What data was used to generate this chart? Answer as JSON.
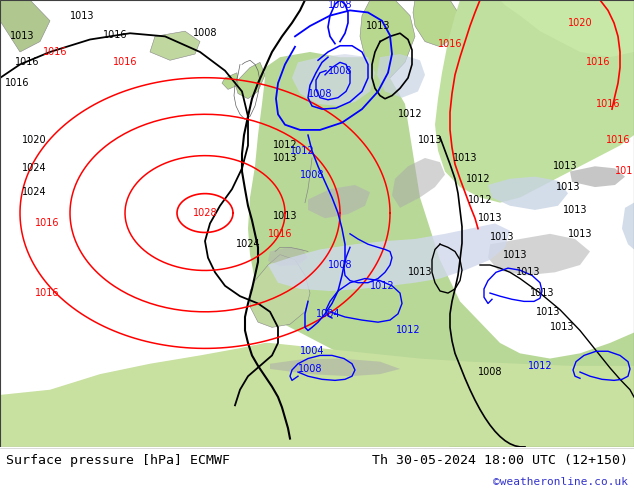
{
  "title_left": "Surface pressure [hPa] ECMWF",
  "title_right": "Th 30-05-2024 18:00 UTC (12+150)",
  "watermark": "©weatheronline.co.uk",
  "footer_bg": "#ffffff",
  "footer_text_color": "#000000",
  "watermark_color": "#3333cc",
  "title_fontsize": 9.5,
  "watermark_fontsize": 8,
  "figsize": [
    6.34,
    4.9
  ],
  "dpi": 100,
  "land_green": "#b8d898",
  "land_green2": "#c8e8a8",
  "mountain_gray": "#a8a8a8",
  "sea_light": "#dcdcdc",
  "sea_atlantic": "#e0e0e0",
  "border_color": "#000000"
}
